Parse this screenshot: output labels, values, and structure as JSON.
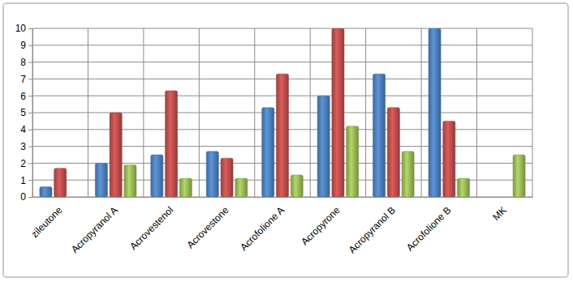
{
  "chart_data": {
    "type": "bar",
    "categories": [
      "zileutone",
      "Acropyranol A",
      "Acrovestenol",
      "Acrovestone",
      "Acrofolione A",
      "Acropyrone",
      "Acropyranol B",
      "Acrofolione B",
      "MK"
    ],
    "series": [
      {
        "color": "#4f81bd",
        "values": [
          0.6,
          2.0,
          2.5,
          2.7,
          5.3,
          6.0,
          7.3,
          10.0,
          0
        ]
      },
      {
        "color": "#c0504d",
        "values": [
          1.7,
          5.0,
          6.3,
          2.3,
          7.3,
          10.0,
          5.3,
          4.5,
          0
        ]
      },
      {
        "color": "#9bbb59",
        "values": [
          0,
          1.9,
          1.1,
          1.1,
          1.3,
          4.2,
          2.7,
          1.1,
          2.5
        ]
      }
    ],
    "ylim": [
      0,
      10
    ],
    "yticks": [
      0,
      1,
      2,
      3,
      4,
      5,
      6,
      7,
      8,
      9,
      10
    ],
    "grid": true
  }
}
